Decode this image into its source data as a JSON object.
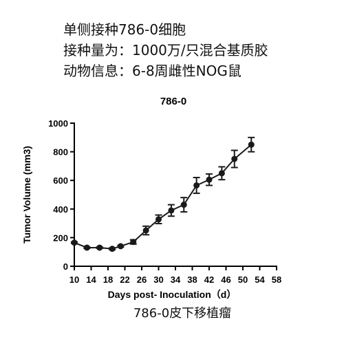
{
  "header": {
    "lines": [
      "单侧接种786-0细胞",
      "接种量为：1000万/只混合基质胶",
      "动物信息：6-8周雌性NOG鼠"
    ]
  },
  "caption": "786-0皮下移植瘤",
  "chart_data": {
    "type": "line",
    "title": "786-0",
    "xlabel": "Days post- Inoculation（d）",
    "ylabel": "Tumor Volume (mm3)",
    "xlim": [
      10,
      58
    ],
    "ylim": [
      0,
      1000
    ],
    "x_ticks": [
      10,
      14,
      18,
      22,
      26,
      30,
      34,
      38,
      42,
      46,
      50,
      54,
      58
    ],
    "y_ticks": [
      0,
      200,
      400,
      600,
      800,
      1000
    ],
    "series": [
      {
        "x": [
          10,
          13,
          16,
          19,
          21,
          24,
          27,
          30,
          33,
          36,
          39,
          42,
          45,
          48,
          52
        ],
        "y": [
          165,
          130,
          130,
          122,
          140,
          170,
          250,
          328,
          390,
          430,
          565,
          605,
          650,
          750,
          850
        ],
        "error": [
          5,
          5,
          5,
          6,
          6,
          15,
          30,
          30,
          40,
          50,
          55,
          40,
          45,
          60,
          50
        ],
        "color": "#1a1a1a"
      }
    ]
  }
}
